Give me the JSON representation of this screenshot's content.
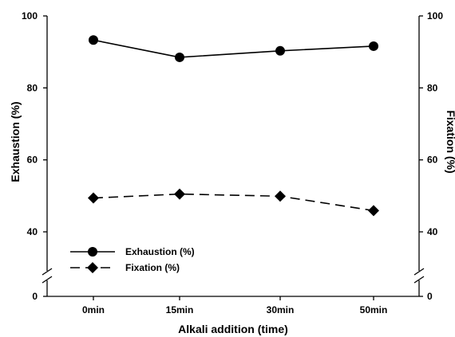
{
  "chart_data": {
    "type": "line",
    "title": "",
    "xlabel": "Alkali addition (time)",
    "ylabel": "Exhaustion (%)",
    "ylabel_right": "Fixation (%)",
    "categories": [
      "0min",
      "15min",
      "30min",
      "50min"
    ],
    "ylim": [
      0,
      100
    ],
    "y_axis_break": [
      0,
      32
    ],
    "yticks": [
      0,
      40,
      60,
      80,
      100
    ],
    "ytick_labels": [
      "0",
      "40",
      "60",
      "80",
      "100"
    ],
    "grid": false,
    "legend_position": "bottom-left",
    "series": [
      {
        "name": "Exhaustion (%)",
        "marker": "circle",
        "line_style": "solid",
        "values": [
          93.3,
          88.5,
          90.3,
          91.6
        ]
      },
      {
        "name": "Fixation (%)",
        "marker": "diamond",
        "line_style": "dashed",
        "values": [
          49.4,
          50.5,
          49.9,
          45.9
        ]
      }
    ],
    "colors": {
      "line": "#000000",
      "marker": "#000000"
    }
  }
}
